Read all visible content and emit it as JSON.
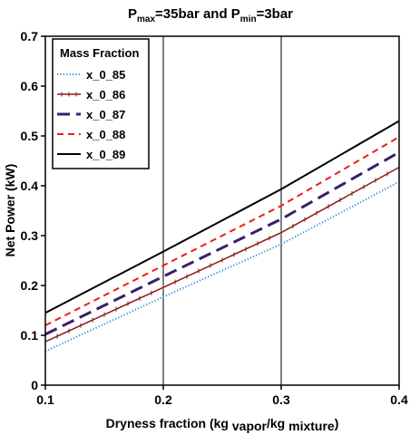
{
  "chart_data": {
    "type": "line",
    "title": {
      "p1": "P",
      "p1_sub": "max",
      "p2": "=35bar and P",
      "p2_sub": "min",
      "p3": "=3bar"
    },
    "xlabel": {
      "main": "Dryness fraction (kg ",
      "sub1": "vapor",
      "mid": "/kg ",
      "sub2": "mixture",
      "end": ")"
    },
    "ylabel": "Net Power (kW)",
    "x": [
      0.1,
      0.2,
      0.3,
      0.4
    ],
    "xlim": [
      0.1,
      0.4
    ],
    "ylim": [
      0,
      0.7
    ],
    "xticks": [
      "0.1",
      "0.2",
      "0.3",
      "0.4"
    ],
    "yticks": [
      "0",
      "0.1",
      "0.2",
      "0.3",
      "0.4",
      "0.5",
      "0.6",
      "0.7"
    ],
    "grid_x": true,
    "grid_y": false,
    "legend": {
      "title": "Mass Fraction",
      "position": "top-left"
    },
    "series": [
      {
        "name": "x_0_85",
        "values": [
          0.068,
          0.177,
          0.283,
          0.408
        ],
        "color": "#2e8fd8",
        "style": "dotted-markers"
      },
      {
        "name": "x_0_86",
        "values": [
          0.087,
          0.196,
          0.306,
          0.437
        ],
        "color": "#8b1a1a",
        "style": "solid-markers"
      },
      {
        "name": "x_0_87",
        "values": [
          0.102,
          0.218,
          0.333,
          0.467
        ],
        "color": "#3a1f6e",
        "style": "long-dash"
      },
      {
        "name": "x_0_88",
        "values": [
          0.12,
          0.24,
          0.36,
          0.498
        ],
        "color": "#ee1c1c",
        "style": "dash"
      },
      {
        "name": "x_0_89",
        "values": [
          0.145,
          0.268,
          0.393,
          0.53
        ],
        "color": "#000000",
        "style": "solid"
      }
    ]
  }
}
